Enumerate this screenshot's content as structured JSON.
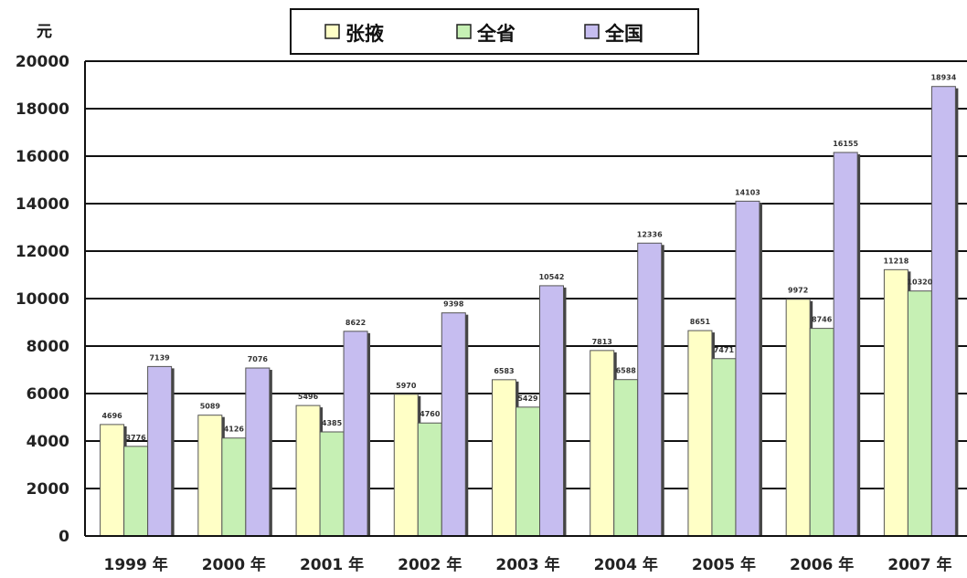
{
  "chart_data": {
    "type": "bar",
    "title": "",
    "xlabel": "",
    "ylabel": "元",
    "ylim": [
      0,
      20000
    ],
    "yticks": [
      0,
      2000,
      4000,
      6000,
      8000,
      10000,
      12000,
      14000,
      16000,
      18000,
      20000
    ],
    "grid": true,
    "legend_position": "top-center",
    "categories": [
      "1999 年",
      "2000 年",
      "2001 年",
      "2002 年",
      "2003 年",
      "2004 年",
      "2005 年",
      "2006 年",
      "2007 年"
    ],
    "series": [
      {
        "name": "张掖",
        "color": "#ffffc6",
        "values": [
          4696,
          5089,
          5496,
          5970,
          6583,
          7813,
          8651,
          9972,
          11218
        ]
      },
      {
        "name": "全省",
        "color": "#c6f0b4",
        "values": [
          3776,
          4126,
          4385,
          4760,
          5429,
          6588,
          7471,
          8746,
          10320
        ]
      },
      {
        "name": "全国",
        "color": "#c6bdf0",
        "values": [
          7139,
          7076,
          8622,
          9398,
          10542,
          12336,
          14103,
          16155,
          18934
        ]
      }
    ]
  }
}
